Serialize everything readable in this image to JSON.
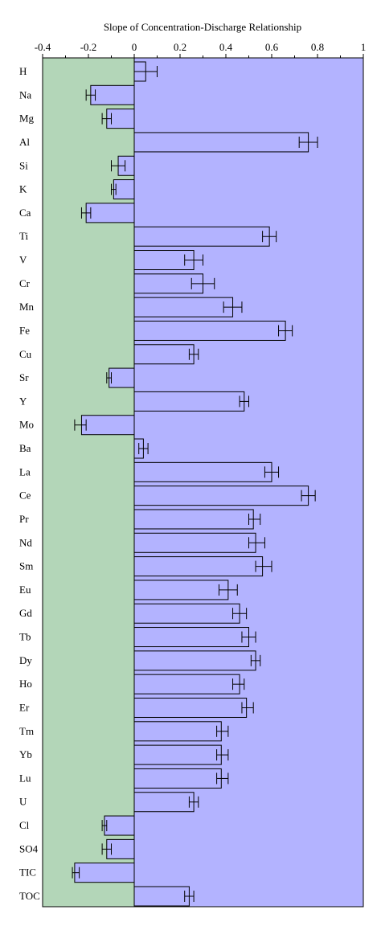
{
  "chart_data": {
    "type": "bar",
    "orientation": "horizontal",
    "title": "Slope of Concentration-Discharge Relationship",
    "xlabel": "",
    "ylabel": "",
    "xlim": [
      -0.4,
      1
    ],
    "x_ticks": [
      -0.4,
      -0.2,
      0,
      0.2,
      0.4,
      0.6,
      0.8,
      1
    ],
    "x_tick_labels": [
      "-0.4",
      "-0.2",
      "0",
      "0.2",
      "0.4",
      "0.6",
      "0.8",
      "1"
    ],
    "grid": false,
    "legend": "none",
    "colors": {
      "negative_region": "#b3d6b8",
      "positive_region": "#b3b3ff",
      "bar_fill": "#b3b3ff",
      "bar_stroke": "#000000"
    },
    "categories": [
      "H",
      "Na",
      "Mg",
      "Al",
      "Si",
      "K",
      "Ca",
      "Ti",
      "V",
      "Cr",
      "Mn",
      "Fe",
      "Cu",
      "Sr",
      "Y",
      "Mo",
      "Ba",
      "La",
      "Ce",
      "Pr",
      "Nd",
      "Sm",
      "Eu",
      "Gd",
      "Tb",
      "Dy",
      "Ho",
      "Er",
      "Tm",
      "Yb",
      "Lu",
      "U",
      "Cl",
      "SO4",
      "TIC",
      "TOC"
    ],
    "values": [
      0.05,
      -0.19,
      -0.12,
      0.76,
      -0.07,
      -0.09,
      -0.21,
      0.59,
      0.26,
      0.3,
      0.43,
      0.66,
      0.26,
      -0.11,
      0.48,
      -0.23,
      0.04,
      0.6,
      0.76,
      0.52,
      0.53,
      0.56,
      0.41,
      0.46,
      0.5,
      0.53,
      0.46,
      0.49,
      0.38,
      0.38,
      0.38,
      0.26,
      -0.13,
      -0.12,
      -0.26,
      0.24
    ],
    "error_low": [
      0.0,
      -0.21,
      -0.14,
      0.72,
      -0.1,
      -0.1,
      -0.23,
      0.56,
      0.22,
      0.25,
      0.39,
      0.63,
      0.24,
      -0.12,
      0.46,
      -0.26,
      0.02,
      0.57,
      0.73,
      0.5,
      0.5,
      0.53,
      0.37,
      0.43,
      0.47,
      0.51,
      0.43,
      0.47,
      0.36,
      0.36,
      0.36,
      0.24,
      -0.14,
      -0.14,
      -0.27,
      0.22
    ],
    "error_high": [
      0.1,
      -0.17,
      -0.1,
      0.8,
      -0.04,
      -0.08,
      -0.19,
      0.62,
      0.3,
      0.35,
      0.47,
      0.69,
      0.28,
      -0.1,
      0.5,
      -0.21,
      0.06,
      0.63,
      0.79,
      0.55,
      0.57,
      0.6,
      0.45,
      0.49,
      0.53,
      0.55,
      0.48,
      0.52,
      0.41,
      0.41,
      0.41,
      0.28,
      -0.12,
      -0.1,
      -0.24,
      0.26
    ]
  }
}
